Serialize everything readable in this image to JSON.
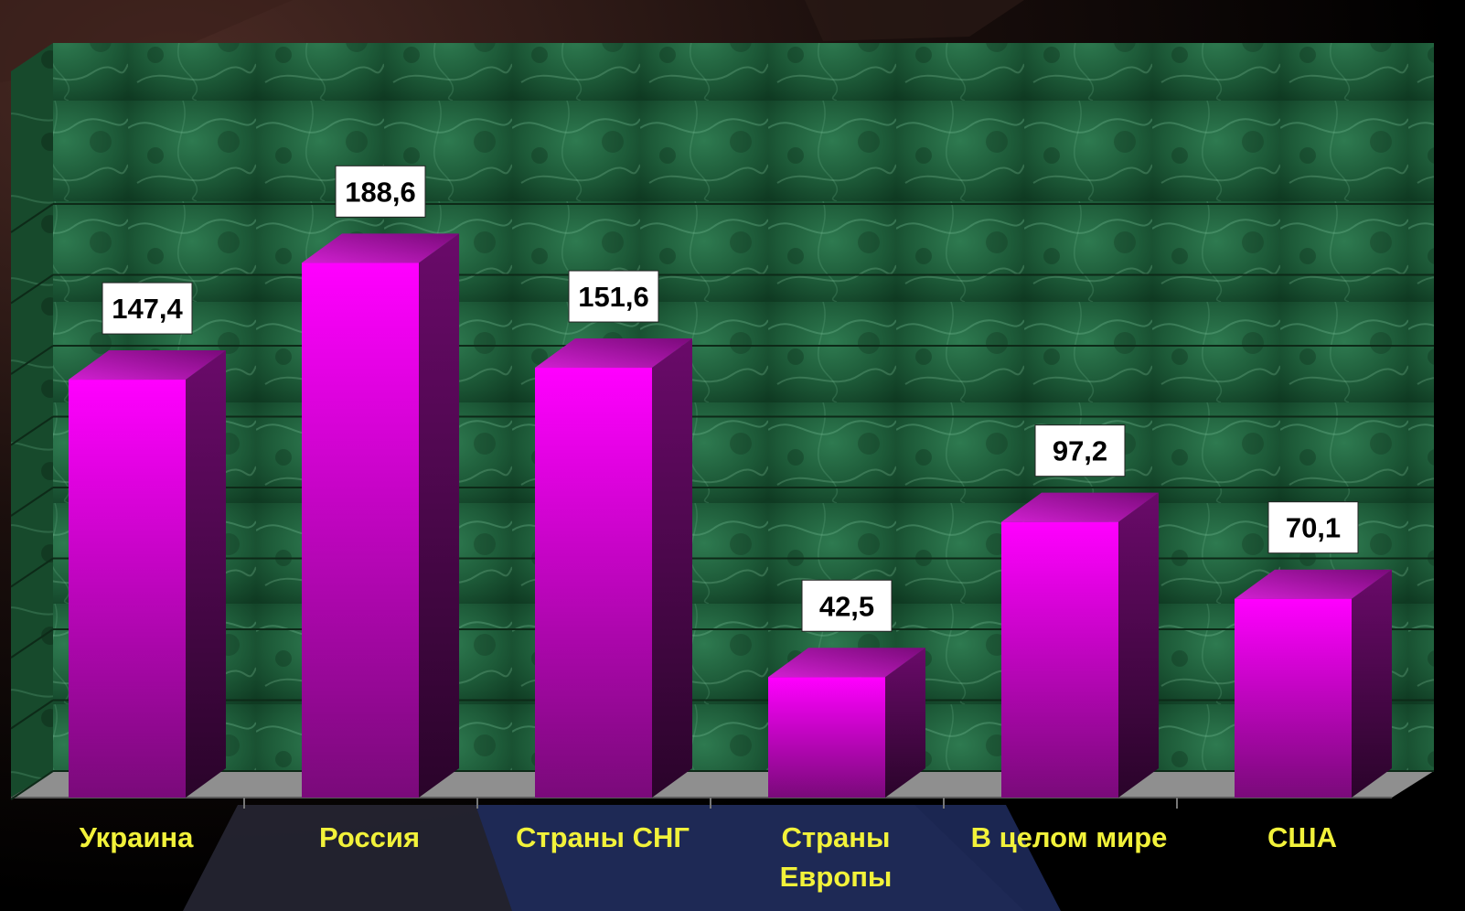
{
  "chart_data": {
    "type": "bar",
    "categories": [
      [
        "Украина"
      ],
      [
        "Россия"
      ],
      [
        "Страны СНГ"
      ],
      [
        "Страны",
        "Европы"
      ],
      [
        "В целом мире"
      ],
      [
        "США"
      ]
    ],
    "values": [
      147.4,
      188.6,
      151.6,
      42.5,
      97.2,
      70.1
    ],
    "value_labels": [
      "147,4",
      "188,6",
      "151,6",
      "42,5",
      "97,2",
      "70,1"
    ],
    "ylim": [
      0,
      200
    ],
    "grid": true,
    "style": "3d",
    "colors": {
      "bar_front_top": "#ff00ff",
      "bar_front_bottom": "#7a0a7a",
      "bar_side": "#5a0a5a",
      "bar_top": "#c020c0",
      "wall": "#1f5a38",
      "floor": "#8a8a8a",
      "category_text": "#f2f23a"
    }
  }
}
